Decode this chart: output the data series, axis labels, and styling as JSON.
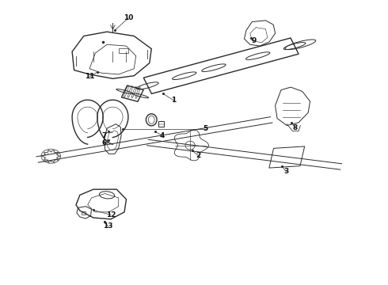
{
  "background_color": "#ffffff",
  "line_color": "#2a2a2a",
  "label_color": "#111111",
  "figsize": [
    4.9,
    3.6
  ],
  "dpi": 100,
  "labels": {
    "1": {
      "lbl": [
        0.465,
        0.535
      ],
      "pt": [
        0.445,
        0.555
      ]
    },
    "2": {
      "lbl": [
        0.565,
        0.425
      ],
      "pt": [
        0.545,
        0.445
      ]
    },
    "3": {
      "lbl": [
        0.735,
        0.385
      ],
      "pt": [
        0.715,
        0.405
      ]
    },
    "4": {
      "lbl": [
        0.415,
        0.515
      ],
      "pt": [
        0.4,
        0.53
      ]
    },
    "5": {
      "lbl": [
        0.52,
        0.535
      ],
      "pt": [
        0.5,
        0.545
      ]
    },
    "6": {
      "lbl": [
        0.265,
        0.475
      ],
      "pt": [
        0.27,
        0.495
      ]
    },
    "7": {
      "lbl": [
        0.265,
        0.51
      ],
      "pt": [
        0.27,
        0.525
      ]
    },
    "8": {
      "lbl": [
        0.76,
        0.49
      ],
      "pt": [
        0.745,
        0.505
      ]
    },
    "9": {
      "lbl": [
        0.64,
        0.855
      ],
      "pt": [
        0.64,
        0.84
      ]
    },
    "10": {
      "lbl": [
        0.33,
        0.94
      ],
      "pt": [
        0.33,
        0.92
      ]
    },
    "11": {
      "lbl": [
        0.235,
        0.72
      ],
      "pt": [
        0.255,
        0.735
      ]
    },
    "12": {
      "lbl": [
        0.295,
        0.245
      ],
      "pt": [
        0.285,
        0.265
      ]
    },
    "13": {
      "lbl": [
        0.285,
        0.19
      ],
      "pt": [
        0.28,
        0.21
      ]
    }
  }
}
